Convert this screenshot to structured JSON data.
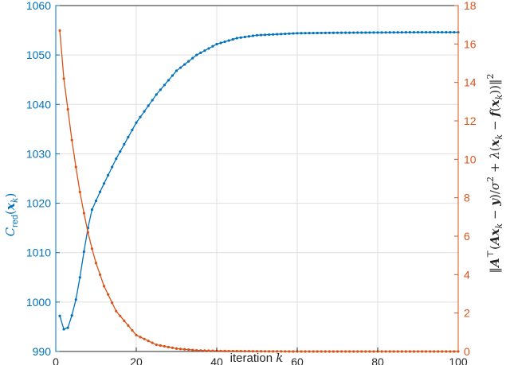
{
  "chart_data": {
    "type": "line",
    "xlabel": "iteration k",
    "ylabel_left": "C_red(x_k)",
    "ylabel_right": "‖A^⊤(Ax_k − y)/σ^2 + λ(x_k − f(x_k))‖^2",
    "xlim": [
      0,
      100
    ],
    "ylim_left": [
      990,
      1060
    ],
    "ylim_right": [
      0,
      18
    ],
    "grid": true,
    "x_ticks": [
      "0",
      "20",
      "40",
      "60",
      "80",
      "100"
    ],
    "y_left_ticks": [
      "990",
      "1000",
      "1010",
      "1020",
      "1030",
      "1040",
      "1050",
      "1060"
    ],
    "y_right_ticks": [
      "0",
      "2",
      "4",
      "6",
      "8",
      "10",
      "12",
      "14",
      "16",
      "18"
    ],
    "colors": {
      "left": "#0072BD",
      "right": "#D95319",
      "grid": "#dfdfdf",
      "axis": "#262626"
    },
    "series": [
      {
        "axis": "left",
        "values_sample": [
          [
            1,
            997.2
          ],
          [
            2,
            994.5
          ],
          [
            3,
            994.8
          ],
          [
            4,
            997.3
          ],
          [
            5,
            1000.5
          ],
          [
            6,
            1005.0
          ],
          [
            7,
            1010.2
          ],
          [
            8,
            1015.0
          ],
          [
            9,
            1018.7
          ],
          [
            10,
            1020.5
          ],
          [
            11,
            1022.3
          ],
          [
            12,
            1024.0
          ],
          [
            15,
            1029.0
          ],
          [
            20,
            1036.3
          ],
          [
            25,
            1042.0
          ],
          [
            30,
            1046.8
          ],
          [
            35,
            1050.0
          ],
          [
            40,
            1052.2
          ],
          [
            45,
            1053.4
          ],
          [
            50,
            1054.0
          ],
          [
            60,
            1054.4
          ],
          [
            70,
            1054.5
          ],
          [
            80,
            1054.55
          ],
          [
            90,
            1054.6
          ],
          [
            100,
            1054.6
          ]
        ]
      },
      {
        "axis": "right",
        "values_sample": [
          [
            1,
            16.7
          ],
          [
            2,
            14.2
          ],
          [
            3,
            12.6
          ],
          [
            4,
            11.0
          ],
          [
            5,
            9.6
          ],
          [
            6,
            8.3
          ],
          [
            7,
            7.2
          ],
          [
            8,
            6.2
          ],
          [
            9,
            5.35
          ],
          [
            10,
            4.6
          ],
          [
            12,
            3.4
          ],
          [
            15,
            2.1
          ],
          [
            20,
            0.85
          ],
          [
            25,
            0.35
          ],
          [
            30,
            0.15
          ],
          [
            35,
            0.06
          ],
          [
            40,
            0.03
          ],
          [
            50,
            0.01
          ],
          [
            60,
            0.0
          ],
          [
            100,
            0.0
          ]
        ]
      }
    ]
  }
}
